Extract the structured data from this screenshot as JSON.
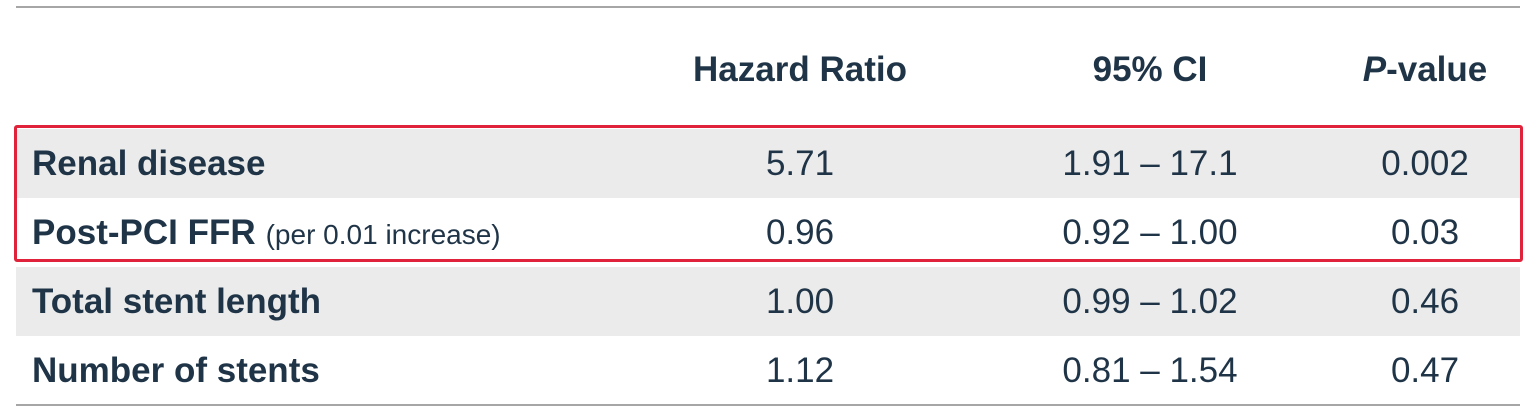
{
  "table": {
    "headers": [
      {
        "text": "Hazard Ratio"
      },
      {
        "text": "95% CI"
      },
      {
        "italic": "P",
        "text": "-value"
      }
    ],
    "rows": [
      {
        "label": "Renal disease",
        "cells": [
          "5.71",
          "1.91 – 17.1",
          "0.002"
        ]
      },
      {
        "label": "Post-PCI FFR",
        "note": "(per 0.01 increase)",
        "cells": [
          "0.96",
          "0.92 – 1.00",
          "0.03"
        ]
      },
      {
        "label": "Total stent length",
        "cells": [
          "1.00",
          "0.99 – 1.02",
          "0.46"
        ]
      },
      {
        "label": "Number of stents",
        "cells": [
          "1.12",
          "0.81 – 1.54",
          "0.47"
        ]
      }
    ]
  }
}
